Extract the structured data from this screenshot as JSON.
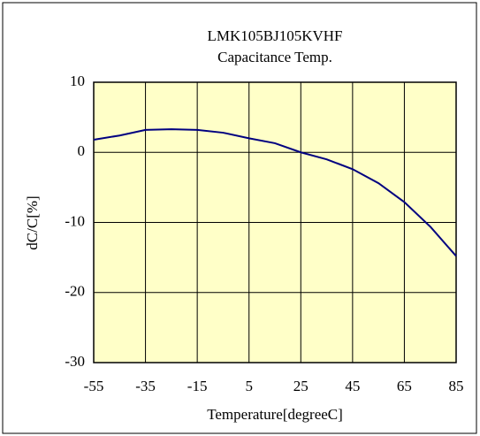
{
  "chart_data": {
    "type": "line",
    "title": "LMK105BJ105KVHF",
    "subtitle": "Capacitance Temp.",
    "x_label": "Temperature[degreeC]",
    "y_label": "dC/C[%]",
    "x": [
      -55,
      -45,
      -35,
      -25,
      -15,
      -5,
      5,
      15,
      25,
      35,
      45,
      55,
      65,
      75,
      85
    ],
    "series": [
      {
        "name": "LMK105BJ105KVHF",
        "color": "#000080",
        "values": [
          1.8,
          2.4,
          3.2,
          3.3,
          3.2,
          2.8,
          2.0,
          1.3,
          0,
          -1.0,
          -2.4,
          -4.4,
          -7.1,
          -10.6,
          -14.8
        ]
      }
    ],
    "xlim": [
      -55,
      85
    ],
    "xticks": [
      -55,
      -35,
      -15,
      5,
      25,
      45,
      65,
      85
    ],
    "ylim": [
      -30,
      10
    ],
    "yticks": [
      -30,
      -20,
      -10,
      0,
      10
    ],
    "grid": true,
    "plot_background": "#ffffc8"
  }
}
